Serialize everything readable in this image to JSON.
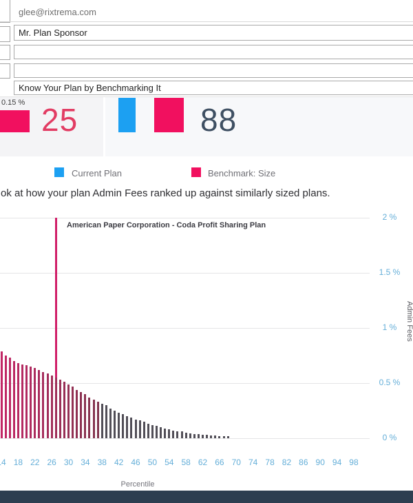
{
  "form": {
    "from_button": {
      "icon": "dropdown-arrow",
      "glyph": "▾"
    },
    "from_value": "glee@rixtrema.com",
    "to_value": "Mr. Plan Sponsor",
    "cc_value": "",
    "bcc_value": "",
    "subject_value": "Know Your Plan by Benchmarking It"
  },
  "kpi": {
    "fee_label": "0.15 %",
    "percentile_number": "25",
    "percentile_number_color": "#e23c63",
    "fee_bar_color": "#f1105f",
    "right_number": "88",
    "right_number_color": "#3e4f62",
    "current_col_color": "#1ca0f2",
    "benchmark_col_color": "#f1105f"
  },
  "legend": {
    "items": [
      {
        "label": "Current Plan",
        "color": "#1ca0f2"
      },
      {
        "label": "Benchmark: Size",
        "color": "#f1105f"
      }
    ]
  },
  "description": "ok at how your plan Admin Fees ranked up against similarly sized plans.",
  "chart_data": {
    "type": "bar",
    "annotation": "American Paper Corporation - Coda Profit Sharing Plan",
    "xlabel": "Percentile",
    "ylabel": "Admin Fees",
    "ylim": [
      0,
      2
    ],
    "grid": true,
    "y_ticks": [
      {
        "label": "2 %",
        "value": 2
      },
      {
        "label": "1.5 %",
        "value": 1.5
      },
      {
        "label": "1 %",
        "value": 1
      },
      {
        "label": "0.5 %",
        "value": 0.5
      },
      {
        "label": "0 %",
        "value": 0
      }
    ],
    "x_ticks": [
      14,
      18,
      22,
      26,
      30,
      34,
      38,
      42,
      46,
      50,
      54,
      58,
      62,
      66,
      70,
      74,
      78,
      82,
      86,
      90,
      94,
      98
    ],
    "highlight": {
      "percentile": 27,
      "value": 0.55,
      "color": "#d01e68"
    },
    "bars": {
      "start_percentile": 14,
      "values": [
        0.79,
        0.75,
        0.73,
        0.7,
        0.68,
        0.67,
        0.66,
        0.65,
        0.64,
        0.62,
        0.6,
        0.59,
        0.57,
        0.55,
        0.53,
        0.51,
        0.49,
        0.47,
        0.44,
        0.42,
        0.4,
        0.37,
        0.35,
        0.33,
        0.31,
        0.3,
        0.27,
        0.25,
        0.23,
        0.22,
        0.2,
        0.19,
        0.17,
        0.16,
        0.15,
        0.13,
        0.12,
        0.11,
        0.1,
        0.09,
        0.08,
        0.07,
        0.065,
        0.06,
        0.05,
        0.045,
        0.04,
        0.035,
        0.03,
        0.03,
        0.025,
        0.025,
        0.02,
        0.02,
        0.02
      ]
    },
    "colors": {
      "bar_left": "#c22766",
      "bar_mid": "#82344e",
      "bar_gray": "#514e57",
      "axis_label": "#64aed8",
      "gridline": "#e4e4e6"
    }
  },
  "footer": {
    "color": "#2d3e50"
  }
}
